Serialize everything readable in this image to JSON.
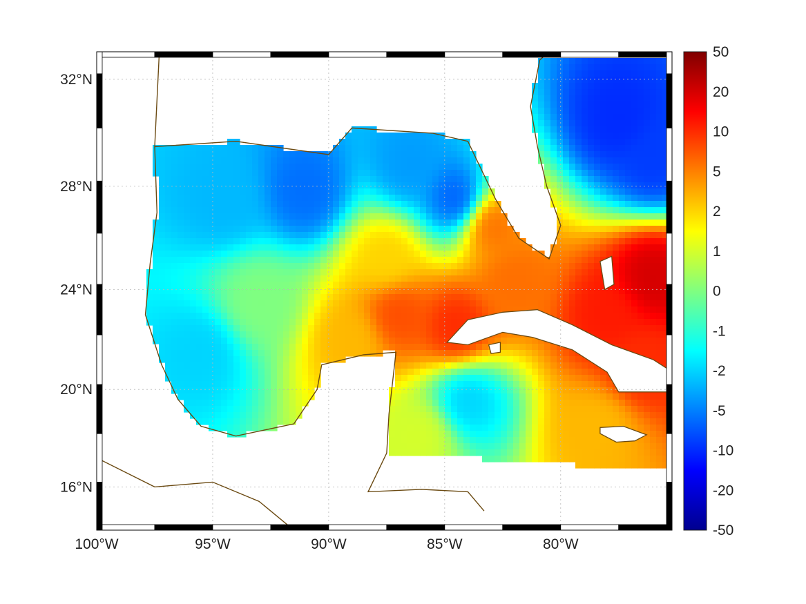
{
  "map": {
    "projection": "mercator",
    "lon_range": [
      -100,
      -75.2
    ],
    "lat_range": [
      14.2,
      33
    ],
    "lon_ticks": [
      {
        "value": -100,
        "label": "100°W"
      },
      {
        "value": -95,
        "label": "95°W"
      },
      {
        "value": -90,
        "label": "90°W"
      },
      {
        "value": -85,
        "label": "85°W"
      },
      {
        "value": -80,
        "label": "80°W"
      }
    ],
    "lat_ticks": [
      {
        "value": 16,
        "label": "16°N"
      },
      {
        "value": 20,
        "label": "20°N"
      },
      {
        "value": 24,
        "label": "24°N"
      },
      {
        "value": 28,
        "label": "28°N"
      },
      {
        "value": 32,
        "label": "32°N"
      }
    ],
    "grid": true,
    "frame": "black-white-checkered",
    "coastline_color": "#6b4a12",
    "field_colormap": "jet",
    "field_hotspots": [
      {
        "lon": -94.5,
        "lat": 27.5,
        "value": -3
      },
      {
        "lon": -91.0,
        "lat": 27.8,
        "value": -6
      },
      {
        "lon": -86.5,
        "lat": 28.8,
        "value": -4
      },
      {
        "lon": -84.5,
        "lat": 27.5,
        "value": -7
      },
      {
        "lon": -77.5,
        "lat": 30.5,
        "value": -10
      },
      {
        "lon": -76.0,
        "lat": 29.0,
        "value": -9
      },
      {
        "lon": -87.5,
        "lat": 25.2,
        "value": 2
      },
      {
        "lon": -87.0,
        "lat": 23.0,
        "value": 8
      },
      {
        "lon": -84.5,
        "lat": 22.5,
        "value": 10
      },
      {
        "lon": -82.0,
        "lat": 24.3,
        "value": 6
      },
      {
        "lon": -78.0,
        "lat": 23.0,
        "value": 12
      },
      {
        "lon": -76.0,
        "lat": 24.5,
        "value": 20
      },
      {
        "lon": -76.5,
        "lat": 21.0,
        "value": 10
      },
      {
        "lon": -78.5,
        "lat": 18.5,
        "value": 3
      },
      {
        "lon": -93.0,
        "lat": 23.5,
        "value": 0
      },
      {
        "lon": -95.5,
        "lat": 21.5,
        "value": -2
      },
      {
        "lon": -84.0,
        "lat": 19.5,
        "value": -2
      },
      {
        "lon": -83.0,
        "lat": 26.5,
        "value": 6
      },
      {
        "lon": -89.0,
        "lat": 22.0,
        "value": 3
      },
      {
        "lon": -86.0,
        "lat": 18.2,
        "value": 1
      }
    ]
  },
  "colorbar": {
    "colors": [
      "#00008f",
      "#0000ff",
      "#0080ff",
      "#00ffff",
      "#80ff80",
      "#ffff00",
      "#ff8000",
      "#ff0000",
      "#800000"
    ],
    "ticks": [
      {
        "label": "50",
        "value": 50
      },
      {
        "label": "20",
        "value": 20
      },
      {
        "label": "10",
        "value": 10
      },
      {
        "label": "5",
        "value": 5
      },
      {
        "label": "2",
        "value": 2
      },
      {
        "label": "1",
        "value": 1
      },
      {
        "label": "0",
        "value": 0
      },
      {
        "label": "-1",
        "value": -1
      },
      {
        "label": "-2",
        "value": -2
      },
      {
        "label": "-5",
        "value": -5
      },
      {
        "label": "-10",
        "value": -10
      },
      {
        "label": "-20",
        "value": -20
      },
      {
        "label": "-50",
        "value": -50
      }
    ]
  }
}
